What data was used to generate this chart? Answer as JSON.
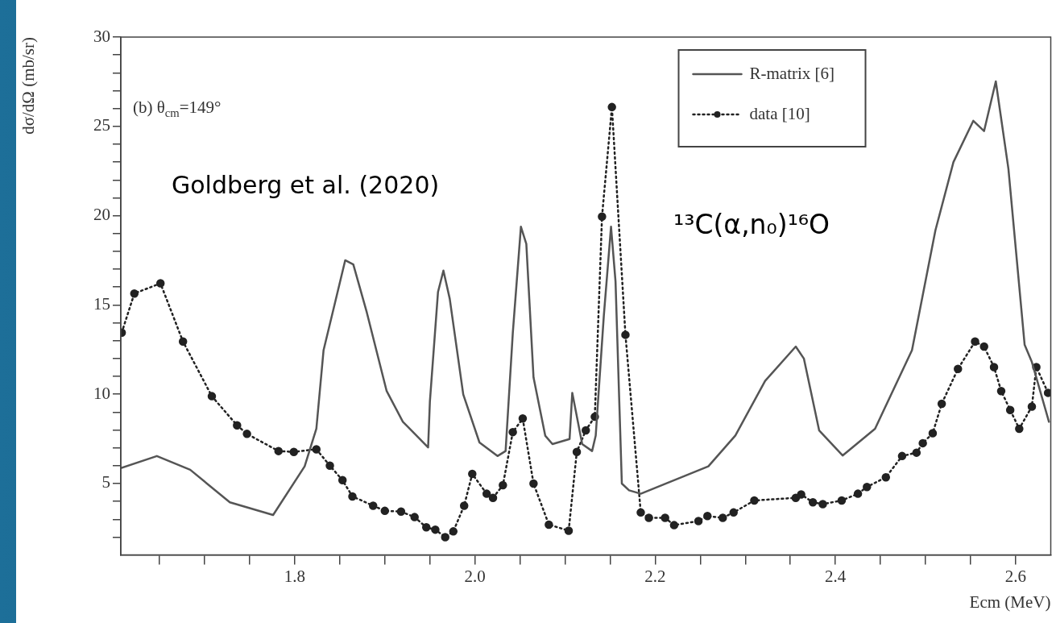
{
  "chart_data": {
    "type": "line",
    "xlabel": "Ecm (MeV)",
    "ylabel": "dσ/dΩ (mb/sr)",
    "annotations": [
      "(b) θ$_{cm}$=149°",
      "Goldberg et al. (2020)",
      "¹³C(α,n₀)¹⁶O"
    ],
    "xlim": [
      1.607,
      2.639
    ],
    "ylim": [
      1,
      30
    ],
    "xticks": [
      {
        "value": 1.65,
        "label": null
      },
      {
        "value": 1.7,
        "label": null
      },
      {
        "value": 1.75,
        "label": null
      },
      {
        "value": 1.8,
        "label": "1.8"
      },
      {
        "value": 1.85,
        "label": null
      },
      {
        "value": 1.9,
        "label": null
      },
      {
        "value": 1.95,
        "label": null
      },
      {
        "value": 2,
        "label": "2.0"
      },
      {
        "value": 2.05,
        "label": null
      },
      {
        "value": 2.1,
        "label": null
      },
      {
        "value": 2.15,
        "label": null
      },
      {
        "value": 2.2,
        "label": "2.2"
      },
      {
        "value": 2.25,
        "label": null
      },
      {
        "value": 2.3,
        "label": null
      },
      {
        "value": 2.35,
        "label": null
      },
      {
        "value": 2.4,
        "label": "2.4"
      },
      {
        "value": 2.45,
        "label": null
      },
      {
        "value": 2.5,
        "label": null
      },
      {
        "value": 2.55,
        "label": null
      },
      {
        "value": 2.6,
        "label": "2.6"
      }
    ],
    "yticks": [
      {
        "value": 2,
        "label": null
      },
      {
        "value": 3,
        "label": null
      },
      {
        "value": 4,
        "label": null
      },
      5,
      {
        "value": 6,
        "label": null
      },
      {
        "value": 7,
        "label": null
      },
      {
        "value": 8,
        "label": null
      },
      {
        "value": 9,
        "label": null
      },
      10,
      {
        "value": 11,
        "label": null
      },
      {
        "value": 12,
        "label": null
      },
      {
        "value": 13,
        "label": null
      },
      {
        "value": 14,
        "label": null
      },
      15,
      {
        "value": 16,
        "label": null
      },
      {
        "value": 17,
        "label": null
      },
      {
        "value": 18,
        "label": null
      },
      {
        "value": 19,
        "label": null
      },
      20,
      {
        "value": 21,
        "label": null
      },
      {
        "value": 22,
        "label": null
      },
      {
        "value": 23,
        "label": null
      },
      {
        "value": 24,
        "label": null
      },
      25,
      {
        "value": 26,
        "label": null
      },
      {
        "value": 27,
        "label": null
      },
      {
        "value": 28,
        "label": null
      },
      {
        "value": 29,
        "label": null
      },
      30
    ],
    "legend": "top right",
    "series": [
      {
        "name": "R-matrix [6]",
        "color": "#555555",
        "line_style": "solid",
        "marker": "none",
        "x": [
          1.607,
          1.647,
          1.684,
          1.728,
          1.776,
          1.811,
          1.824,
          1.832,
          1.843,
          1.856,
          1.865,
          1.88,
          1.902,
          1.92,
          1.948,
          1.95,
          1.959,
          1.965,
          1.972,
          1.987,
          2.005,
          2.025,
          2.034,
          2.042,
          2.051,
          2.057,
          2.065,
          2.078,
          2.086,
          2.105,
          2.108,
          2.119,
          2.13,
          2.134,
          2.143,
          2.151,
          2.156,
          2.163,
          2.171,
          2.184,
          2.259,
          2.289,
          2.322,
          2.356,
          2.365,
          2.382,
          2.408,
          2.444,
          2.485,
          2.511,
          2.531,
          2.553,
          2.565,
          2.578,
          2.592,
          2.61,
          2.618,
          2.637
        ],
        "values": [
          5.86,
          6.54,
          5.77,
          3.95,
          3.24,
          5.96,
          8.07,
          12.47,
          14.77,
          17.5,
          17.27,
          14.58,
          10.18,
          8.46,
          7.02,
          9.6,
          15.73,
          16.92,
          15.35,
          9.99,
          7.3,
          6.54,
          6.82,
          13.43,
          19.38,
          18.42,
          10.94,
          7.68,
          7.21,
          7.49,
          10.08,
          7.21,
          6.82,
          7.68,
          14.39,
          19.38,
          16.31,
          5,
          4.62,
          4.43,
          5.96,
          7.69,
          10.75,
          12.67,
          12,
          7.97,
          6.57,
          8.07,
          12.47,
          19.18,
          23,
          25.31,
          24.74,
          27.52,
          22.63,
          12.77,
          11.81,
          8.46
        ]
      },
      {
        "name": "data [10]",
        "color": "#222222",
        "line_style": "dotted",
        "marker": "circle",
        "x": [
          1.608,
          1.622,
          1.651,
          1.676,
          1.708,
          1.736,
          1.747,
          1.782,
          1.799,
          1.824,
          1.839,
          1.853,
          1.864,
          1.887,
          1.9,
          1.918,
          1.933,
          1.946,
          1.956,
          1.967,
          1.976,
          1.988,
          1.997,
          2.013,
          2.02,
          2.031,
          2.042,
          2.053,
          2.065,
          2.082,
          2.104,
          2.113,
          2.123,
          2.133,
          2.141,
          2.152,
          2.167,
          2.184,
          2.193,
          2.211,
          2.221,
          2.248,
          2.258,
          2.275,
          2.287,
          2.31,
          2.356,
          2.362,
          2.375,
          2.386,
          2.407,
          2.425,
          2.435,
          2.456,
          2.474,
          2.49,
          2.497,
          2.508,
          2.518,
          2.536,
          2.555,
          2.565,
          2.576,
          2.584,
          2.594,
          2.604,
          2.618,
          2.623,
          2.636
        ],
        "values": [
          13.45,
          15.64,
          16.21,
          12.95,
          9.89,
          8.26,
          7.78,
          6.82,
          6.77,
          6.92,
          6,
          5.19,
          4.28,
          3.76,
          3.47,
          3.43,
          3.12,
          2.55,
          2.42,
          2,
          2.32,
          3.76,
          5.54,
          4.43,
          4.2,
          4.91,
          7.88,
          8.64,
          5,
          2.7,
          2.36,
          6.77,
          7.98,
          8.74,
          19.95,
          26.08,
          13.33,
          3.38,
          3.08,
          3.08,
          2.67,
          2.9,
          3.18,
          3.08,
          3.38,
          4.05,
          4.2,
          4.39,
          3.95,
          3.85,
          4.05,
          4.43,
          4.81,
          5.35,
          6.54,
          6.73,
          7.26,
          7.82,
          9.47,
          11.42,
          12.95,
          12.67,
          11.52,
          10.18,
          9.12,
          8.07,
          9.31,
          11.52,
          10.08
        ]
      }
    ]
  }
}
